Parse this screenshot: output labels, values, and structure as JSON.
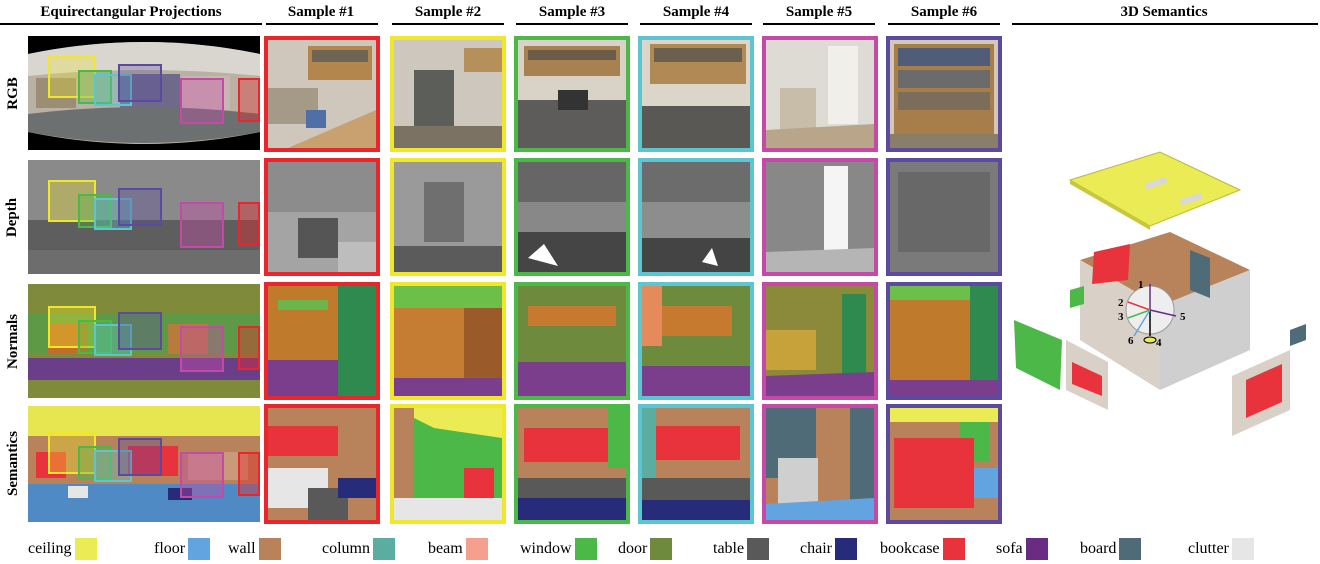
{
  "headers": {
    "equirect": "Equirectangular Projections",
    "samples": [
      "Sample #1",
      "Sample #2",
      "Sample #3",
      "Sample #4",
      "Sample #5",
      "Sample #6"
    ],
    "semantics3d": "3D Semantics"
  },
  "rows": [
    "RGB",
    "Depth",
    "Normals",
    "Semantics"
  ],
  "sample_border_colors": [
    "#e8262b",
    "#f0e62a",
    "#4cb848",
    "#5cc6d0",
    "#c54aa8",
    "#5b4a9e"
  ],
  "legend": [
    {
      "label": "ceiling",
      "color": "#ebeb55"
    },
    {
      "label": "floor",
      "color": "#62a4df"
    },
    {
      "label": "wall",
      "color": "#b8835a"
    },
    {
      "label": "column",
      "color": "#5aada0"
    },
    {
      "label": "beam",
      "color": "#f5a08e"
    },
    {
      "label": "window",
      "color": "#4cb848"
    },
    {
      "label": "door",
      "color": "#6e8a3c"
    },
    {
      "label": "table",
      "color": "#595959"
    },
    {
      "label": "chair",
      "color": "#262b7a"
    },
    {
      "label": "bookcase",
      "color": "#e8323c"
    },
    {
      "label": "sofa",
      "color": "#6a2b82"
    },
    {
      "label": "board",
      "color": "#4f6b78"
    },
    {
      "label": "clutter",
      "color": "#e6e6e6"
    }
  ],
  "axis_numbers": [
    "1",
    "2",
    "3",
    "4",
    "5",
    "6"
  ]
}
